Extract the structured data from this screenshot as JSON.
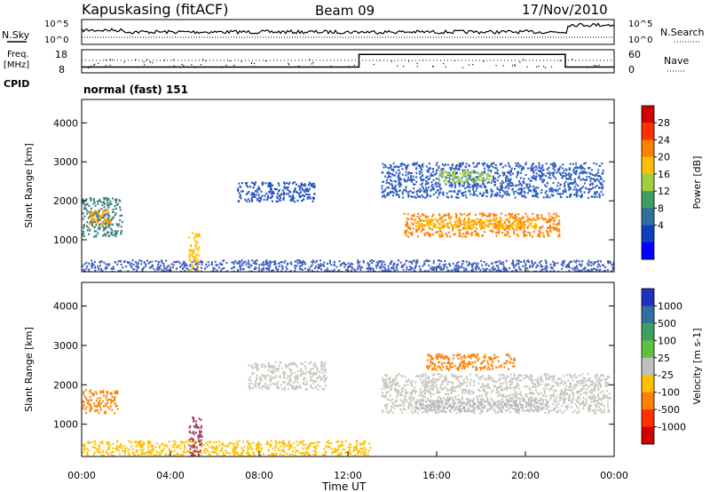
{
  "header": {
    "station": "Kapuskasing (fitACF)",
    "beam": "Beam 09",
    "date": "17/Nov/2010"
  },
  "top_panel": {
    "left_label": "N.Sky",
    "right_label": "N.Search",
    "left_ticks": [
      "10^5",
      "10^0"
    ],
    "right_ticks": [
      "10^5",
      "10^0"
    ]
  },
  "freq_panel": {
    "left_label_1": "Freq.",
    "left_label_2": "[MHz]",
    "right_label": "Nave",
    "left_ticks": [
      "18",
      "8"
    ],
    "right_ticks": [
      "60",
      "0"
    ],
    "freq_steps": [
      {
        "t": 0,
        "level": 0.25
      },
      {
        "t": 12.5,
        "level": 0.25
      },
      {
        "t": 12.5,
        "level": 0.8
      },
      {
        "t": 21.8,
        "level": 0.8
      },
      {
        "t": 21.8,
        "level": 0.25
      },
      {
        "t": 24,
        "level": 0.25
      }
    ]
  },
  "cpid": {
    "label": "CPID",
    "value": "normal (fast) 151"
  },
  "x_axis": {
    "label": "Time UT",
    "ticks": [
      "00:00",
      "04:00",
      "08:00",
      "12:00",
      "16:00",
      "20:00",
      "00:00"
    ],
    "range_hours": [
      0,
      24
    ]
  },
  "chart_data": [
    {
      "type": "heatmap",
      "ylabel": "Slant Range [km]",
      "ylim": [
        180,
        4600
      ],
      "yticks": [
        1000,
        2000,
        3000,
        4000
      ],
      "colorbar": {
        "label": "Power [dB]",
        "ticks": [
          "28",
          "24",
          "20",
          "16",
          "12",
          "8",
          "4"
        ],
        "colors": [
          "#d00000",
          "#ff3000",
          "#ff8000",
          "#ffc000",
          "#a0d040",
          "#40a060",
          "#3070a0",
          "#1040c0",
          "#0000ff"
        ]
      },
      "regions": [
        {
          "t0": 0.0,
          "t1": 1.8,
          "r0": 1100,
          "r1": 2100,
          "color": "#3d7f7f"
        },
        {
          "t0": 0.3,
          "t1": 1.3,
          "r0": 1400,
          "r1": 1800,
          "color": "#ffa000"
        },
        {
          "t0": 7.0,
          "t1": 10.5,
          "r0": 2000,
          "r1": 2500,
          "color": "#2050c0"
        },
        {
          "t0": 13.5,
          "t1": 23.5,
          "r0": 2100,
          "r1": 3000,
          "color": "#3060c0"
        },
        {
          "t0": 14.5,
          "t1": 21.5,
          "r0": 1100,
          "r1": 1700,
          "color": "#ff8000"
        },
        {
          "t0": 15.0,
          "t1": 20.5,
          "r0": 1300,
          "r1": 1550,
          "color": "#ffc000"
        },
        {
          "t0": 16.0,
          "t1": 18.5,
          "r0": 2500,
          "r1": 2800,
          "color": "#a0d040"
        },
        {
          "t0": 0.0,
          "t1": 24.0,
          "r0": 180,
          "r1": 500,
          "color": "#4060c0"
        },
        {
          "t0": 4.8,
          "t1": 5.3,
          "r0": 200,
          "r1": 1200,
          "color": "#ffc000"
        }
      ]
    },
    {
      "type": "heatmap",
      "ylabel": "Slant Range [km]",
      "ylim": [
        180,
        4600
      ],
      "yticks": [
        1000,
        2000,
        3000,
        4000
      ],
      "colorbar": {
        "label": "Velocity [m s-1]",
        "ticks": [
          "1000",
          "500",
          "100",
          "25",
          "-25",
          "-100",
          "-500",
          "-1000"
        ],
        "colors": [
          "#2030c0",
          "#3070a0",
          "#40a060",
          "#60c040",
          "#c0c0c0",
          "#ffc000",
          "#ff8000",
          "#ff3000",
          "#d00000"
        ]
      },
      "regions": [
        {
          "t0": 0.0,
          "t1": 1.6,
          "r0": 1300,
          "r1": 1900,
          "color": "#ff8000"
        },
        {
          "t0": 7.5,
          "t1": 11.0,
          "r0": 1900,
          "r1": 2600,
          "color": "#c8c8c0"
        },
        {
          "t0": 13.5,
          "t1": 23.8,
          "r0": 1300,
          "r1": 2300,
          "color": "#c8c8c0"
        },
        {
          "t0": 15.0,
          "t1": 21.0,
          "r0": 1350,
          "r1": 1650,
          "color": "#b8b8b8"
        },
        {
          "t0": 15.5,
          "t1": 19.5,
          "r0": 2400,
          "r1": 2800,
          "color": "#ff8000"
        },
        {
          "t0": 0.0,
          "t1": 13.0,
          "r0": 180,
          "r1": 600,
          "color": "#ffc000"
        },
        {
          "t0": 4.8,
          "t1": 5.4,
          "r0": 200,
          "r1": 1200,
          "color": "#a04060"
        }
      ]
    }
  ]
}
